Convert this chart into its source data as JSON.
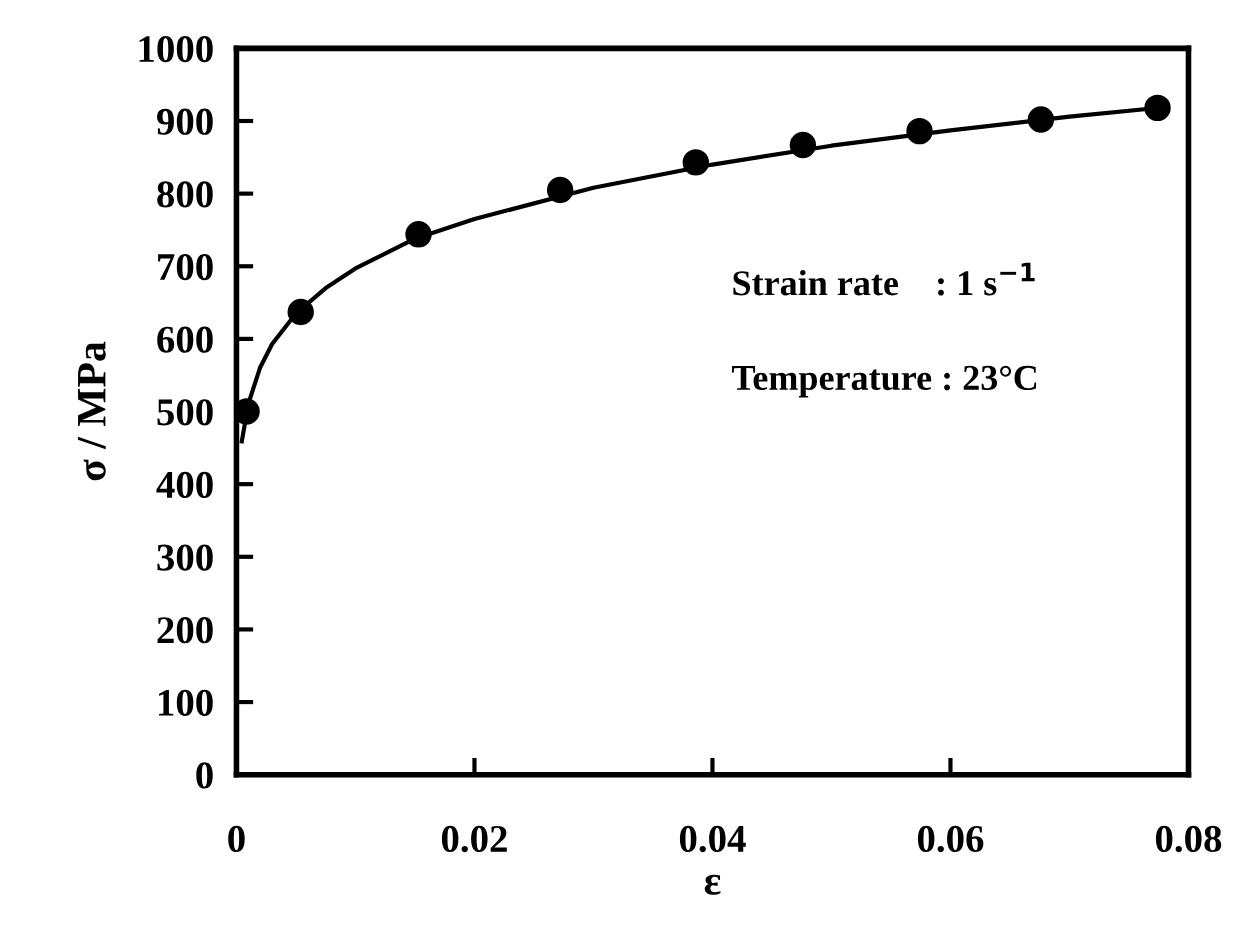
{
  "chart_data": {
    "type": "scatter",
    "xlabel": "ε",
    "ylabel": "σ / MPa",
    "annotations": [
      "Strain rate    : 1 s$^{−1}$",
      "Temperature : 23°C"
    ],
    "series": [
      {
        "color": "#000000",
        "marker": "circle",
        "x": [
          0.00085,
          0.0054,
          0.0153,
          0.0272,
          0.0386,
          0.0476,
          0.0574,
          0.0676,
          0.0774
        ],
        "values": [
          500,
          637,
          744,
          805,
          843,
          867,
          886,
          902,
          918
        ]
      },
      {
        "type": "line",
        "color": "#000000",
        "marker": "none",
        "line_style": "solid",
        "x": [
          0.00045,
          0.001,
          0.002,
          0.003,
          0.005,
          0.0075,
          0.01,
          0.015,
          0.02,
          0.03,
          0.04,
          0.05,
          0.06,
          0.07,
          0.0774
        ],
        "values": [
          459,
          511,
          561,
          593,
          635,
          670,
          697,
          738,
          765,
          808,
          840,
          866,
          887,
          906,
          918
        ]
      }
    ],
    "xlim": [
      0,
      0.08
    ],
    "xticks": [
      0,
      0.02,
      0.04,
      0.06,
      0.08
    ],
    "ylim": [
      0,
      1000
    ],
    "yticks": [
      0,
      100,
      200,
      300,
      400,
      500,
      600,
      700,
      800,
      900,
      1000
    ],
    "grid": false,
    "legend": false
  }
}
